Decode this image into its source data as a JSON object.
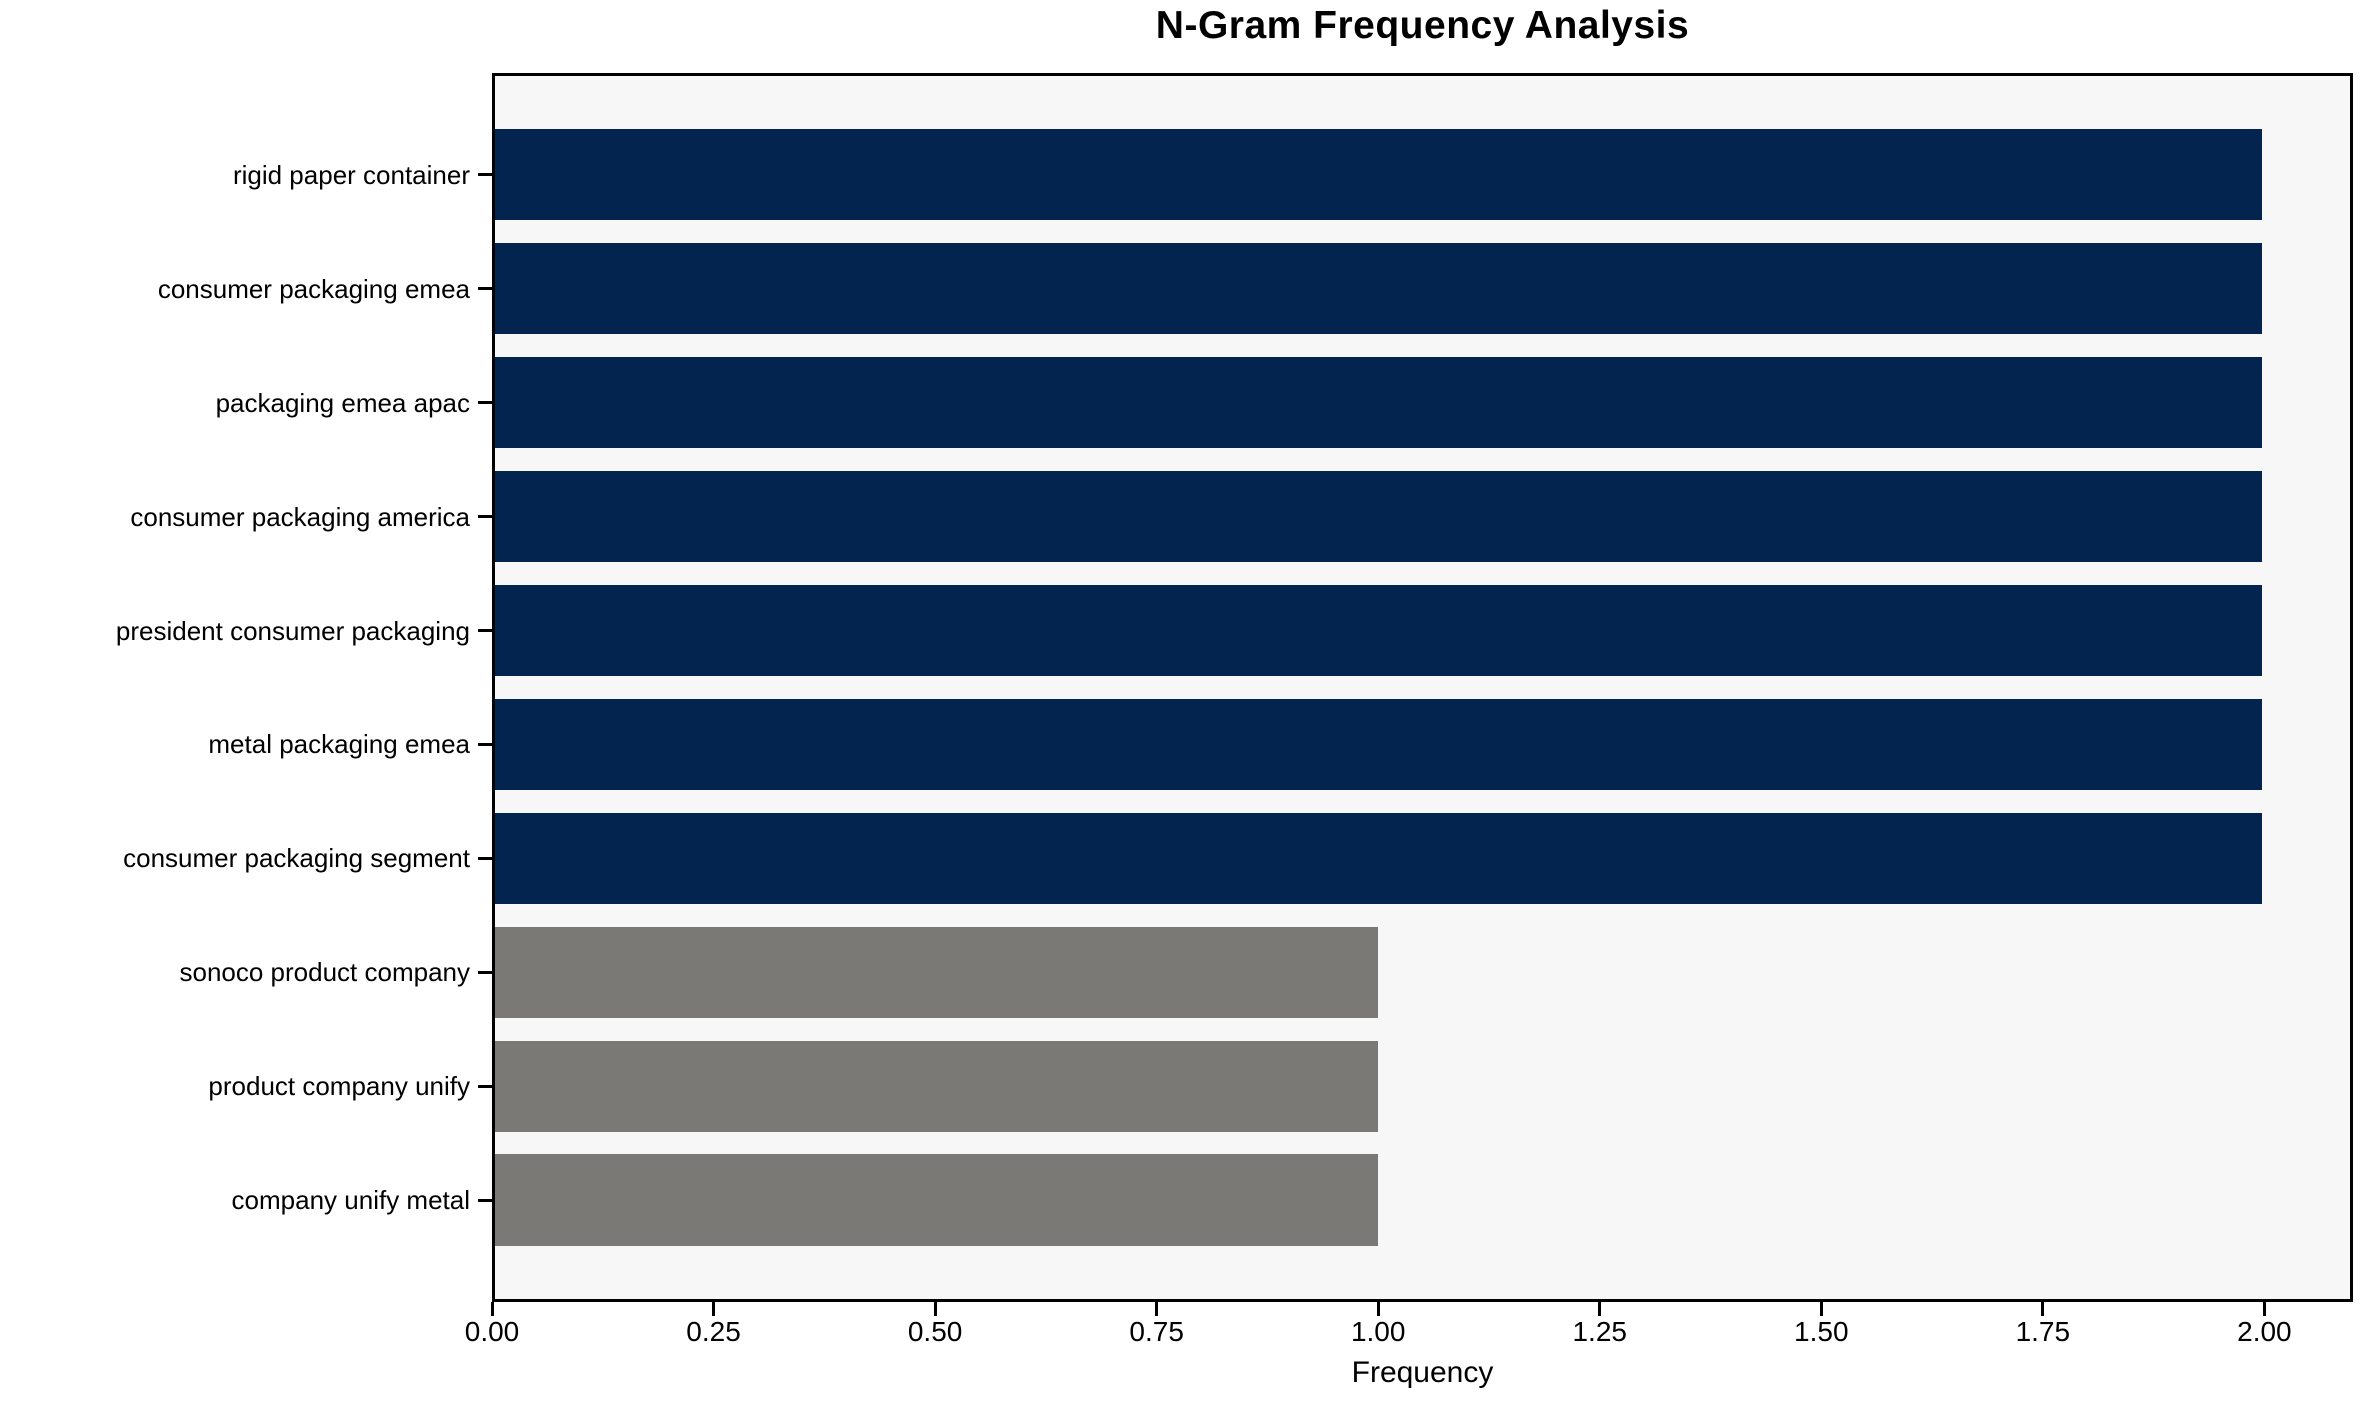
{
  "title": "N-Gram Frequency Analysis",
  "chart_data": {
    "type": "bar",
    "orientation": "horizontal",
    "title": "N-Gram Frequency Analysis",
    "categories": [
      "rigid paper container",
      "consumer packaging emea",
      "packaging emea apac",
      "consumer packaging america",
      "president consumer packaging",
      "metal packaging emea",
      "consumer packaging segment",
      "sonoco product company",
      "product company unify",
      "company unify metal"
    ],
    "values": [
      2,
      2,
      2,
      2,
      2,
      2,
      2,
      1,
      1,
      1
    ],
    "bar_colors": [
      "#02244e",
      "#02244e",
      "#02244e",
      "#02244e",
      "#02244e",
      "#02244e",
      "#02244e",
      "#7a7975",
      "#7a7975",
      "#7a7975"
    ],
    "xlabel": "Frequency",
    "xticks": [
      0,
      0.25,
      0.5,
      0.75,
      1.0,
      1.25,
      1.5,
      1.75,
      2.0
    ],
    "xtick_labels": [
      "0.00",
      "0.25",
      "0.50",
      "0.75",
      "1.00",
      "1.25",
      "1.50",
      "1.75",
      "2.00"
    ],
    "xlim": [
      0,
      2.1
    ],
    "grid": false,
    "legend": null,
    "plot_background": "#f7f7f7",
    "colors": {
      "high_frequency_bar": "#02244e",
      "low_frequency_bar": "#7a7975",
      "spine": "#000000",
      "text": "#000000"
    }
  }
}
